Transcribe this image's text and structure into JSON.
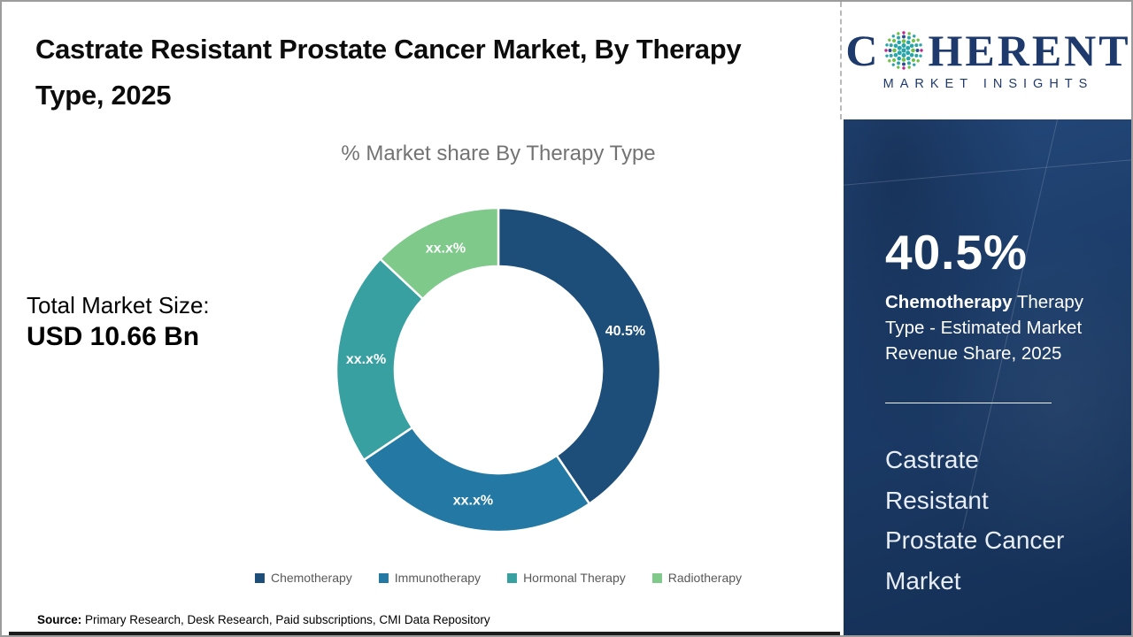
{
  "header": {
    "title": "Castrate Resistant Prostate Cancer Market, By Therapy Type, 2025"
  },
  "left_stats": {
    "total_label": "Total Market Size:",
    "total_value": "USD 10.66 Bn"
  },
  "chart_data": {
    "type": "pie",
    "subtype": "donut",
    "title": "% Market share By Therapy Type",
    "categories": [
      "Chemotherapy",
      "Immunotherapy",
      "Hormonal Therapy",
      "Radiotherapy"
    ],
    "values": [
      40.5,
      25.1,
      21.4,
      13.0
    ],
    "slice_labels": [
      "40.5%",
      "xx.x%",
      "xx.x%",
      "xx.x%"
    ],
    "colors": [
      "#1d4e79",
      "#2379a4",
      "#38a0a0",
      "#7fc98b"
    ],
    "start_angle_deg": 0,
    "direction": "clockwise",
    "outer_radius": 183,
    "inner_radius": 117,
    "label_radius": 150,
    "legend_position": "bottom"
  },
  "brand": {
    "logo_first_letter": "C",
    "logo_rest": "HERENT",
    "tagline": "MARKET INSIGHTS",
    "navy": "#1e3a6d",
    "dot_colors": [
      "#29a5a9",
      "#6fbf49",
      "#bb2b8d",
      "#2c4c96"
    ]
  },
  "sidebar": {
    "stat_value": "40.5%",
    "stat_bold": "Chemotherapy",
    "stat_rest": " Therapy Type - Estimated Market Revenue Share, 2025",
    "market_name": "Castrate Resistant Prostate Cancer Market"
  },
  "footer": {
    "source_label": "Source:",
    "source_text": " Primary Research, Desk Research, Paid subscriptions, CMI Data Repository"
  }
}
